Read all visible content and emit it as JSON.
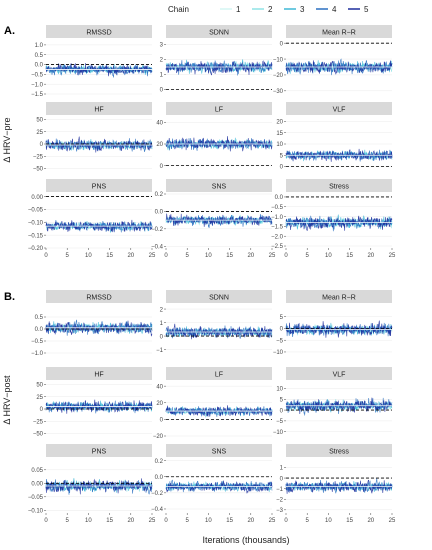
{
  "legend": {
    "title": "Chain",
    "items": [
      {
        "label": "1",
        "color": "#d4f6f2"
      },
      {
        "label": "2",
        "color": "#8fe3e6"
      },
      {
        "label": "3",
        "color": "#3fb8d6"
      },
      {
        "label": "4",
        "color": "#2a6fc0"
      },
      {
        "label": "5",
        "color": "#1d2e9c"
      }
    ]
  },
  "median_color": "#ffffff",
  "reference_line": "dashed, black",
  "x_axis_label": "Iterations (thousands)",
  "chart_data": [
    {
      "type": "line",
      "section": "A.",
      "ylabel": "Δ HRV−pre",
      "xlim": [
        0,
        25
      ],
      "xticks": [
        0,
        5,
        10,
        15,
        20,
        25
      ],
      "panels": [
        {
          "title": "RMSSD",
          "ylim": [
            -1.5,
            1.25
          ],
          "yticks": [
            1.0,
            0.5,
            0.0,
            -0.5,
            -1.0,
            -1.5
          ],
          "ytick_labels": [
            "1.0",
            "0.5",
            "0.0",
            "−0.5",
            "−1.0",
            "−1.5"
          ],
          "center": -0.25,
          "spread": 0.45,
          "reference": 0
        },
        {
          "title": "SDNN",
          "ylim": [
            -0.3,
            3.3
          ],
          "yticks": [
            0,
            1,
            2,
            3
          ],
          "ytick_labels": [
            "0",
            "1",
            "2",
            "3"
          ],
          "center": 1.5,
          "spread": 0.7,
          "reference": 0
        },
        {
          "title": "Mean R−R",
          "ylim": [
            -32,
            2
          ],
          "yticks": [
            0,
            -10,
            -20,
            -30
          ],
          "ytick_labels": [
            "0",
            "−10",
            "−20",
            "−30"
          ],
          "center": -15,
          "spread": 7,
          "reference": 0
        },
        {
          "title": "HF",
          "ylim": [
            -55,
            55
          ],
          "yticks": [
            50,
            25,
            0,
            -25,
            -50
          ],
          "ytick_labels": [
            "50",
            "25",
            "0",
            "−25",
            "−50"
          ],
          "center": -2,
          "spread": 20,
          "reference": 0
        },
        {
          "title": "LF",
          "ylim": [
            -5,
            45
          ],
          "yticks": [
            0,
            20,
            40
          ],
          "ytick_labels": [
            "0",
            "20",
            "40"
          ],
          "center": 20,
          "spread": 9,
          "reference": 0
        },
        {
          "title": "VLF",
          "ylim": [
            -2,
            22
          ],
          "yticks": [
            0,
            5,
            10,
            15,
            20
          ],
          "ytick_labels": [
            "0",
            "5",
            "10",
            "15",
            "20"
          ],
          "center": 5,
          "spread": 4,
          "reference": 0
        },
        {
          "title": "PNS",
          "ylim": [
            -0.2,
            0.01
          ],
          "yticks": [
            0.0,
            -0.05,
            -0.1,
            -0.15,
            -0.2
          ],
          "ytick_labels": [
            "0.00",
            "−0.05",
            "−0.10",
            "−0.15",
            "−0.20"
          ],
          "center": -0.115,
          "spread": 0.035,
          "reference": 0
        },
        {
          "title": "SNS",
          "ylim": [
            -0.42,
            0.2
          ],
          "yticks": [
            0.2,
            0.0,
            -0.2,
            -0.4
          ],
          "ytick_labels": [
            "0.2",
            "0.0",
            "−0.2",
            "−0.4"
          ],
          "center": -0.1,
          "spread": 0.1,
          "reference": 0
        },
        {
          "title": "Stress",
          "ylim": [
            -2.6,
            0.15
          ],
          "yticks": [
            0.0,
            -0.5,
            -1.0,
            -1.5,
            -2.0,
            -2.5
          ],
          "ytick_labels": [
            "0.0",
            "−0.5",
            "−1.0",
            "−1.5",
            "−2.0",
            "−2.5"
          ],
          "center": -1.3,
          "spread": 0.55,
          "reference": 0
        }
      ]
    },
    {
      "type": "line",
      "section": "B.",
      "ylabel": "Δ HRV−post",
      "xlim": [
        0,
        25
      ],
      "xticks": [
        0,
        5,
        10,
        15,
        20,
        25
      ],
      "panels": [
        {
          "title": "RMSSD",
          "ylim": [
            -1.25,
            1.0
          ],
          "yticks": [
            0.5,
            0.0,
            -0.5,
            -1.0
          ],
          "ytick_labels": [
            "0.5",
            "0.0",
            "−0.5",
            "−1.0"
          ],
          "center": 0.05,
          "spread": 0.45,
          "reference": 0
        },
        {
          "title": "SDNN",
          "ylim": [
            -1.7,
            2.3
          ],
          "yticks": [
            2,
            1,
            0,
            -1
          ],
          "ytick_labels": [
            "2",
            "1",
            "0",
            "−1"
          ],
          "center": 0.3,
          "spread": 0.7,
          "reference": 0
        },
        {
          "title": "Mean R−R",
          "ylim": [
            -13,
            10
          ],
          "yticks": [
            5,
            0,
            -5,
            -10
          ],
          "ytick_labels": [
            "5",
            "0",
            "−5",
            "−10"
          ],
          "center": -0.5,
          "spread": 4.5,
          "reference": 0
        },
        {
          "title": "HF",
          "ylim": [
            -55,
            55
          ],
          "yticks": [
            50,
            25,
            0,
            -25,
            -50
          ],
          "ytick_labels": [
            "50",
            "25",
            "0",
            "−25",
            "−50"
          ],
          "center": 5,
          "spread": 20,
          "reference": 0
        },
        {
          "title": "LF",
          "ylim": [
            -20,
            45
          ],
          "yticks": [
            40,
            20,
            0,
            -20
          ],
          "ytick_labels": [
            "40",
            "20",
            "0",
            "−20"
          ],
          "center": 10,
          "spread": 10,
          "reference": 0
        },
        {
          "title": "VLF",
          "ylim": [
            -12,
            13
          ],
          "yticks": [
            10,
            5,
            0,
            -5,
            -10
          ],
          "ytick_labels": [
            "10",
            "5",
            "0",
            "−5",
            "−10"
          ],
          "center": 2,
          "spread": 5,
          "reference": 0
        },
        {
          "title": "PNS",
          "ylim": [
            -0.11,
            0.09
          ],
          "yticks": [
            0.05,
            0.0,
            -0.05,
            -0.1
          ],
          "ytick_labels": [
            "0.05",
            "0.00",
            "−0.05",
            "−0.10"
          ],
          "center": -0.01,
          "spread": 0.04,
          "reference": 0
        },
        {
          "title": "SNS",
          "ylim": [
            -0.45,
            0.22
          ],
          "yticks": [
            0.2,
            0.0,
            -0.2,
            -0.4
          ],
          "ytick_labels": [
            "0.2",
            "0.0",
            "−0.2",
            "−0.4"
          ],
          "center": -0.12,
          "spread": 0.11,
          "reference": 0
        },
        {
          "title": "Stress",
          "ylim": [
            -3.3,
            1.8
          ],
          "yticks": [
            1,
            0,
            -1,
            -2,
            -3
          ],
          "ytick_labels": [
            "1",
            "0",
            "−1",
            "−2",
            "−3"
          ],
          "center": -0.8,
          "spread": 0.9,
          "reference": 0
        }
      ]
    }
  ]
}
